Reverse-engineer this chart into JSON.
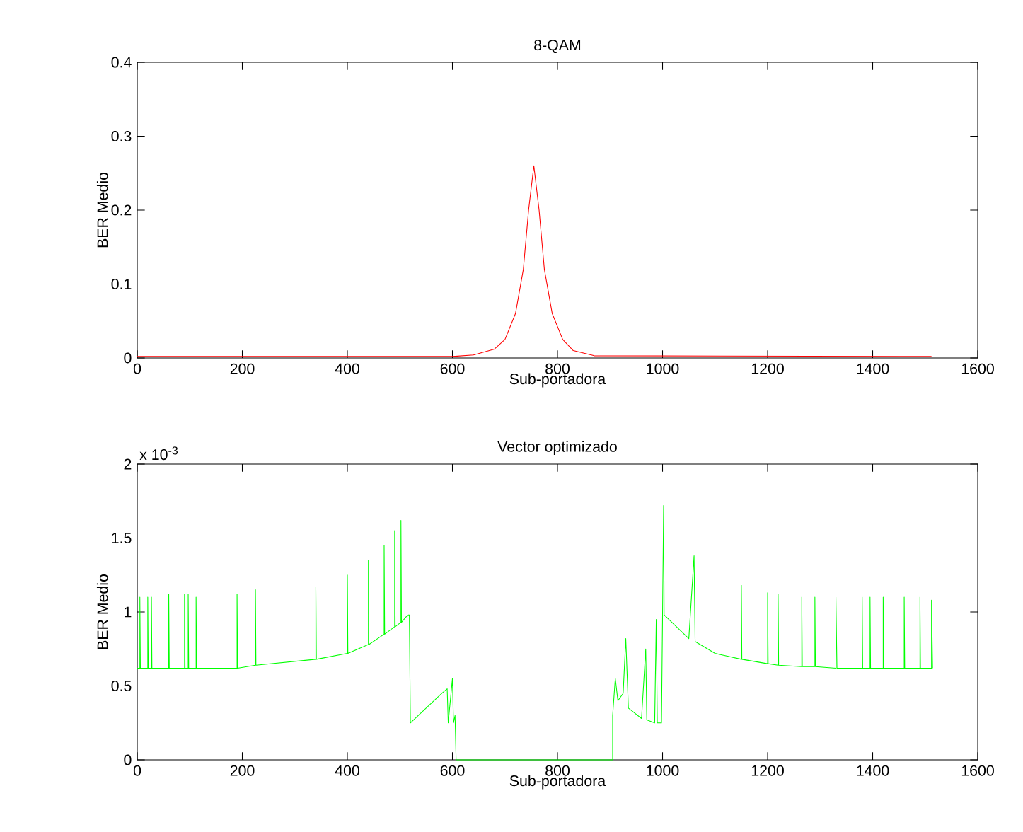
{
  "chart_data": [
    {
      "type": "line",
      "title": "8-QAM",
      "xlabel": "Sub-portadora",
      "ylabel": "BER Medio",
      "color": "#ff0000",
      "x": [
        0,
        600,
        640,
        680,
        700,
        720,
        735,
        745,
        755,
        765,
        775,
        790,
        810,
        830,
        870,
        1512
      ],
      "values": [
        0.002,
        0.002,
        0.004,
        0.012,
        0.025,
        0.06,
        0.12,
        0.2,
        0.26,
        0.2,
        0.12,
        0.06,
        0.025,
        0.01,
        0.003,
        0.002
      ],
      "xlim": [
        0,
        1600
      ],
      "ylim": [
        0,
        0.4
      ],
      "xticks": [
        0,
        200,
        400,
        600,
        800,
        1000,
        1200,
        1400,
        1600
      ],
      "yticks": [
        0,
        0.1,
        0.2,
        0.3,
        0.4
      ]
    },
    {
      "type": "line",
      "title": "Vector optimizado",
      "xlabel": "Sub-portadora",
      "ylabel": "BER Medio",
      "color": "#00ff00",
      "annotations": [
        "x 10$^{-3}$"
      ],
      "x": [
        0,
        5,
        5,
        6,
        20,
        20,
        21,
        27,
        27,
        28,
        60,
        60,
        61,
        90,
        90,
        91,
        97,
        97,
        98,
        112,
        112,
        113,
        190,
        190,
        191,
        225,
        225,
        226,
        340,
        340,
        341,
        400,
        400,
        401,
        440,
        440,
        441,
        470,
        470,
        471,
        490,
        490,
        491,
        502,
        502,
        503,
        515,
        518,
        520,
        580,
        590,
        592,
        600,
        602,
        605,
        607,
        905,
        905,
        910,
        915,
        925,
        930,
        935,
        960,
        968,
        970,
        985,
        988,
        990,
        998,
        1000,
        1002,
        1003,
        1050,
        1060,
        1062,
        1100,
        1150,
        1150,
        1151,
        1200,
        1200,
        1201,
        1220,
        1220,
        1221,
        1265,
        1265,
        1266,
        1290,
        1290,
        1291,
        1330,
        1330,
        1332,
        1380,
        1380,
        1381,
        1395,
        1395,
        1396,
        1420,
        1420,
        1421,
        1460,
        1460,
        1461,
        1490,
        1490,
        1491,
        1512,
        1512,
        1514
      ],
      "values": [
        0.62,
        0.62,
        1.1,
        0.62,
        0.62,
        1.1,
        0.62,
        0.62,
        1.1,
        0.62,
        0.62,
        1.12,
        0.62,
        0.62,
        1.12,
        0.62,
        0.62,
        1.12,
        0.62,
        0.62,
        1.1,
        0.62,
        0.62,
        1.12,
        0.62,
        0.64,
        1.15,
        0.64,
        0.68,
        1.17,
        0.68,
        0.72,
        1.25,
        0.72,
        0.78,
        1.35,
        0.78,
        0.85,
        1.45,
        0.85,
        0.9,
        1.55,
        0.9,
        0.93,
        1.62,
        0.93,
        0.98,
        0.98,
        0.25,
        0.45,
        0.48,
        0.25,
        0.55,
        0.25,
        0.3,
        0,
        0,
        0.3,
        0.55,
        0.4,
        0.45,
        0.82,
        0.35,
        0.28,
        0.75,
        0.27,
        0.25,
        0.95,
        0.25,
        0.25,
        0.98,
        1.72,
        0.98,
        0.82,
        1.38,
        0.8,
        0.72,
        0.68,
        1.18,
        0.68,
        0.65,
        1.13,
        0.65,
        0.64,
        1.12,
        0.64,
        0.63,
        1.1,
        0.63,
        0.63,
        1.1,
        0.63,
        0.62,
        1.1,
        0.62,
        0.62,
        1.1,
        0.62,
        0.62,
        1.1,
        0.62,
        0.62,
        1.1,
        0.62,
        0.62,
        1.1,
        0.62,
        0.62,
        1.1,
        0.62,
        0.62,
        1.08,
        0.62
      ],
      "xlim": [
        0,
        1600
      ],
      "ylim": [
        0,
        2
      ],
      "xticks": [
        0,
        200,
        400,
        600,
        800,
        1000,
        1200,
        1400,
        1600
      ],
      "yticks": [
        0,
        0.5,
        1,
        1.5,
        2
      ]
    }
  ]
}
